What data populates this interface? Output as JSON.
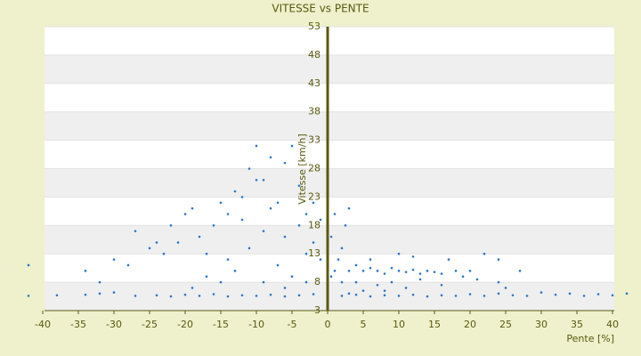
{
  "chart_data": {
    "type": "scatter",
    "title": "VITESSE vs PENTE",
    "x_label": "Pente [%]",
    "y_label": "Vitesse [km/h]",
    "xlim": [
      -40,
      40
    ],
    "xticks": [
      -40,
      -35,
      -30,
      -25,
      -20,
      -15,
      -10,
      -5,
      0,
      5,
      10,
      15,
      20,
      25,
      30,
      35,
      40
    ],
    "ylim": [
      3,
      53
    ],
    "yticks": [
      3,
      8,
      13,
      18,
      23,
      28,
      33,
      38,
      43,
      48,
      53
    ],
    "grid": true,
    "color": "#2e75c4",
    "x": [
      -42,
      -38,
      -34,
      -32,
      -30,
      -27,
      -24,
      -22,
      -20,
      -18,
      -16,
      -14,
      -12,
      -10,
      -8,
      -6,
      -4,
      -2,
      2,
      4,
      6,
      8,
      10,
      12,
      14,
      16,
      18,
      20,
      22,
      24,
      26,
      28,
      30,
      32,
      34,
      36,
      38,
      40,
      42,
      -42,
      -34,
      -32,
      -30,
      -28,
      -27,
      -25,
      -24,
      -23,
      -22,
      -21,
      -20,
      -19,
      -18,
      -17,
      -16,
      -15,
      -14,
      -13,
      -12,
      -11,
      -10,
      -9,
      -8,
      -7,
      -6,
      -5,
      -4,
      -3,
      -2,
      -1,
      -13,
      -11,
      -9,
      -7,
      -5,
      -3,
      -2,
      -1,
      -15,
      -17,
      -19,
      -12,
      -10,
      -8,
      -6,
      -4,
      -14,
      -9,
      -6,
      -3,
      1,
      1.5,
      2,
      3,
      2.5,
      3,
      4,
      5,
      6,
      7,
      8,
      9,
      10,
      11,
      12,
      13,
      14,
      15,
      16,
      17,
      18,
      19,
      20,
      21,
      22,
      24,
      24,
      25,
      27,
      10,
      12,
      6,
      4,
      7,
      9,
      11,
      13,
      16,
      5,
      8,
      2,
      3,
      0.5,
      0.5,
      1
    ],
    "values": [
      5.6,
      5.7,
      5.8,
      6,
      6.2,
      5.6,
      5.7,
      5.5,
      5.8,
      5.6,
      5.9,
      5.5,
      5.7,
      5.6,
      5.8,
      5.5,
      5.7,
      5.9,
      5.6,
      5.8,
      5.5,
      5.7,
      5.6,
      5.8,
      5.5,
      5.7,
      5.6,
      5.9,
      5.6,
      6,
      5.7,
      5.6,
      6.2,
      5.8,
      6,
      5.6,
      5.9,
      5.7,
      6,
      11,
      10,
      8,
      12,
      11,
      17,
      14,
      15,
      13,
      18,
      15,
      20,
      21,
      16,
      13,
      18,
      22,
      20,
      24,
      19,
      28,
      32,
      26,
      30,
      22,
      29,
      32,
      25,
      20,
      15,
      12,
      10,
      14,
      17,
      11,
      9,
      13,
      22,
      19,
      8,
      9,
      7,
      23,
      26,
      21,
      16,
      18,
      12,
      8,
      7,
      8,
      10,
      12,
      14,
      21,
      18,
      10,
      11,
      10,
      10.5,
      10,
      9.5,
      10.5,
      10,
      9.8,
      10.2,
      9.5,
      10,
      9.8,
      9.5,
      12,
      10,
      9,
      10,
      8.5,
      13,
      12,
      8,
      7,
      10,
      13,
      12.5,
      12,
      8,
      7.5,
      8,
      7,
      8.5,
      7.5,
      6.5,
      6.5,
      8,
      6,
      9,
      16,
      20
    ]
  }
}
